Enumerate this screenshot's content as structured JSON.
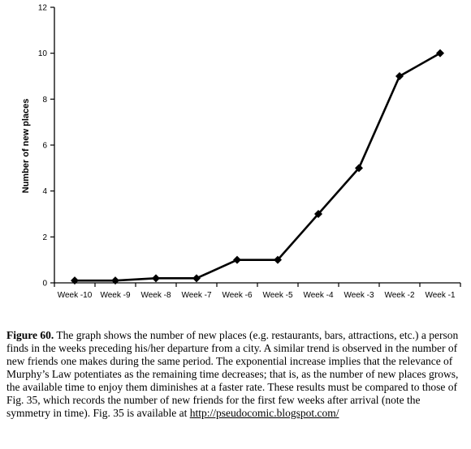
{
  "chart_data": {
    "type": "line",
    "categories": [
      "Week -10",
      "Week -9",
      "Week -8",
      "Week -7",
      "Week -6",
      "Week -5",
      "Week -4",
      "Week -3",
      "Week -2",
      "Week -1"
    ],
    "values": [
      0.1,
      0.1,
      0.2,
      0.2,
      1,
      1,
      3,
      5,
      9,
      10
    ],
    "ylabel": "Number of new places",
    "xlabel": "",
    "ylim": [
      0,
      12
    ],
    "yticks": [
      "0",
      "2",
      "4",
      "6",
      "8",
      "10",
      "12"
    ],
    "marker": "diamond",
    "color": "#000000",
    "grid": false,
    "legend": "none"
  },
  "caption": {
    "label": "Figure 60.",
    "text": " The graph shows the number of new places (e.g. restaurants, bars, attractions, etc.) a person finds in the weeks preceding his/her departure from a city. A similar trend is observed in the number of new friends one makes during the same period. The exponential increase implies that the relevance of Murphy’s Law potentiates as the remaining time decreases;  that is, as the number of new places grows, the available time to enjoy them diminishes at a faster rate. These results must be compared to those of Fig. 35, which records the number of new friends for the first few weeks after arrival (note the symmetry in time). Fig. 35 is available at ",
    "link": "http://pseudocomic.blogspot.com/"
  }
}
